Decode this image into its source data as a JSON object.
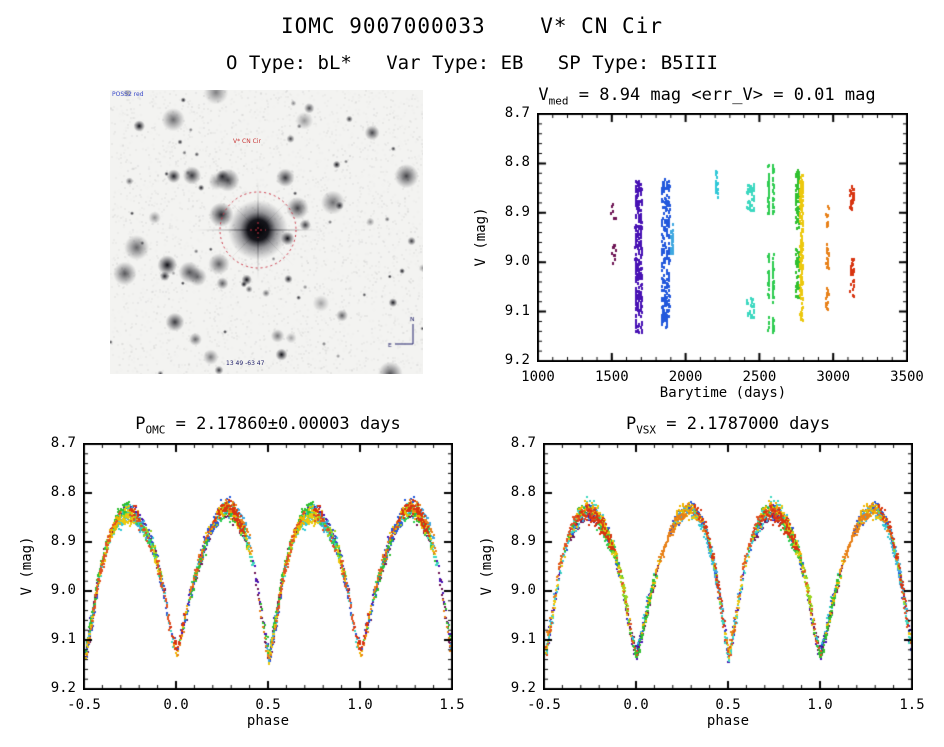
{
  "header": {
    "title": "IOMC 9007000033    V* CN Cir",
    "subtitle": "O Type: bL*   Var Type: EB   SP Type: B5III"
  },
  "finder": {
    "survey_label": "POSS2 red",
    "target_label": "V* CN Cir",
    "coords_label": "13 49 -63 47",
    "compass_n": "N",
    "compass_e": "E",
    "marker_color": "#cc3344",
    "annotation_blue": "#3848c8",
    "annotation_navy": "#20206a"
  },
  "chart_data": [
    {
      "id": "ts",
      "type": "scatter",
      "title_pre": "V",
      "title_sub": "med",
      "title_post": " = 8.94 mag <err_V> = 0.01 mag",
      "xlabel": "Barytime (days)",
      "ylabel": "V (mag)",
      "xlim": [
        1000,
        3500
      ],
      "ylim": [
        8.7,
        9.2
      ],
      "y_inverted_magnitude_axis": true,
      "xticks": [
        "1000",
        "1500",
        "2000",
        "2500",
        "3000",
        "3500"
      ],
      "yticks": [
        "8.7",
        "8.8",
        "8.9",
        "9.0",
        "9.1",
        "9.2"
      ],
      "xtick_values": [
        1000,
        1500,
        2000,
        2500,
        3000,
        3500
      ],
      "ytick_values": [
        8.7,
        8.8,
        8.9,
        9.0,
        9.1,
        9.2
      ],
      "grid": false,
      "seed": 3,
      "clusters": [
        {
          "t": 1505,
          "dt": 22,
          "color": "#6e1455",
          "n": 16,
          "segments": [
            [
              8.88,
              8.91
            ],
            [
              8.96,
              9.02
            ]
          ]
        },
        {
          "t": 1675,
          "dt": 26,
          "color": "#4812b4",
          "n": 280,
          "segments": [
            [
              8.83,
              9.14
            ]
          ]
        },
        {
          "t": 1858,
          "dt": 30,
          "color": "#2258dc",
          "n": 240,
          "segments": [
            [
              8.83,
              9.13
            ]
          ]
        },
        {
          "t": 1902,
          "dt": 10,
          "color": "#3fa8e0",
          "n": 35,
          "segments": [
            [
              8.92,
              8.98
            ]
          ]
        },
        {
          "t": 2205,
          "dt": 10,
          "color": "#30c8d8",
          "n": 22,
          "segments": [
            [
              8.81,
              8.87
            ]
          ]
        },
        {
          "t": 2435,
          "dt": 28,
          "color": "#3cd8c0",
          "n": 70,
          "segments": [
            [
              8.84,
              8.9
            ],
            [
              9.07,
              9.11
            ]
          ]
        },
        {
          "t": 2572,
          "dt": 30,
          "color": "#2ecc50",
          "n": 150,
          "segments": [
            [
              8.8,
              8.9
            ],
            [
              8.98,
              9.08
            ],
            [
              9.1,
              9.14
            ]
          ]
        },
        {
          "t": 2752,
          "dt": 14,
          "color": "#30c030",
          "n": 120,
          "segments": [
            [
              8.81,
              8.93
            ],
            [
              8.97,
              9.07
            ]
          ]
        },
        {
          "t": 2780,
          "dt": 11,
          "color": "#ecc80e",
          "n": 160,
          "segments": [
            [
              8.82,
              9.12
            ]
          ]
        },
        {
          "t": 2955,
          "dt": 9,
          "color": "#e88018",
          "n": 55,
          "segments": [
            [
              8.88,
              8.93
            ],
            [
              8.96,
              9.01
            ],
            [
              9.05,
              9.1
            ]
          ]
        },
        {
          "t": 3122,
          "dt": 13,
          "color": "#d83410",
          "n": 62,
          "segments": [
            [
              8.84,
              8.89
            ],
            [
              8.99,
              9.07
            ]
          ]
        }
      ]
    },
    {
      "id": "pomc",
      "type": "scatter",
      "title_pre": "P",
      "title_sub": "OMC",
      "title_post": " = 2.17860±0.00003 days",
      "xlabel": "phase",
      "ylabel": "V (mag)",
      "xlim": [
        -0.5,
        1.5
      ],
      "ylim": [
        8.7,
        9.2
      ],
      "y_inverted_magnitude_axis": true,
      "xticks": [
        "-0.5",
        "0.0",
        "0.5",
        "1.0",
        "1.5"
      ],
      "yticks": [
        "8.7",
        "8.8",
        "8.9",
        "9.0",
        "9.1",
        "9.2"
      ],
      "xtick_values": [
        -0.5,
        0.0,
        0.5,
        1.0,
        1.5
      ],
      "ytick_values": [
        8.7,
        8.8,
        8.9,
        9.0,
        9.1,
        9.2
      ],
      "grid": false,
      "seed": 7,
      "n_passes": 78,
      "scatter_mag": 0.013,
      "curve": {
        "phase": [
          0.0,
          0.03,
          0.07,
          0.12,
          0.17,
          0.22,
          0.27,
          0.32,
          0.37,
          0.42,
          0.46,
          0.5,
          0.54,
          0.58,
          0.63,
          0.68,
          0.73,
          0.78,
          0.83,
          0.88,
          0.93,
          0.97,
          1.0
        ],
        "mag": [
          9.13,
          9.08,
          9.01,
          8.94,
          8.885,
          8.85,
          8.832,
          8.845,
          8.88,
          8.95,
          9.04,
          9.135,
          9.05,
          8.96,
          8.89,
          8.852,
          8.835,
          8.845,
          8.875,
          8.92,
          9.0,
          9.09,
          9.13
        ]
      },
      "palette": [
        "#6e1455",
        "#4812b4",
        "#3050d0",
        "#2258dc",
        "#3fa8e0",
        "#30c8d8",
        "#3cd8c0",
        "#2ecc50",
        "#30c030",
        "#9ad41e",
        "#ecc80e",
        "#f0b400",
        "#e88018",
        "#e05020",
        "#d83410"
      ]
    },
    {
      "id": "pvsx",
      "type": "scatter",
      "title_pre": "P",
      "title_sub": "VSX",
      "title_post": " = 2.1787000 days",
      "xlabel": "phase",
      "ylabel": "V (mag)",
      "xlim": [
        -0.5,
        1.5
      ],
      "ylim": [
        8.7,
        9.2
      ],
      "y_inverted_magnitude_axis": true,
      "xticks": [
        "-0.5",
        "0.0",
        "0.5",
        "1.0",
        "1.5"
      ],
      "yticks": [
        "8.7",
        "8.8",
        "8.9",
        "9.0",
        "9.1",
        "9.2"
      ],
      "xtick_values": [
        -0.5,
        0.0,
        0.5,
        1.0,
        1.5
      ],
      "ytick_values": [
        8.7,
        8.8,
        8.9,
        9.0,
        9.1,
        9.2
      ],
      "grid": false,
      "seed": 11,
      "n_passes": 78,
      "scatter_mag": 0.013,
      "curve": {
        "phase": [
          0.0,
          0.03,
          0.07,
          0.12,
          0.17,
          0.22,
          0.27,
          0.32,
          0.37,
          0.42,
          0.46,
          0.5,
          0.54,
          0.58,
          0.63,
          0.68,
          0.73,
          0.78,
          0.83,
          0.88,
          0.93,
          0.97,
          1.0
        ],
        "mag": [
          9.13,
          9.08,
          9.01,
          8.94,
          8.885,
          8.85,
          8.832,
          8.845,
          8.88,
          8.95,
          9.04,
          9.135,
          9.05,
          8.96,
          8.89,
          8.852,
          8.835,
          8.845,
          8.875,
          8.92,
          9.0,
          9.09,
          9.13
        ]
      },
      "palette": [
        "#6e1455",
        "#4812b4",
        "#3050d0",
        "#2258dc",
        "#3fa8e0",
        "#30c8d8",
        "#3cd8c0",
        "#2ecc50",
        "#30c030",
        "#9ad41e",
        "#ecc80e",
        "#f0b400",
        "#e88018",
        "#e05020",
        "#d83410"
      ]
    }
  ]
}
